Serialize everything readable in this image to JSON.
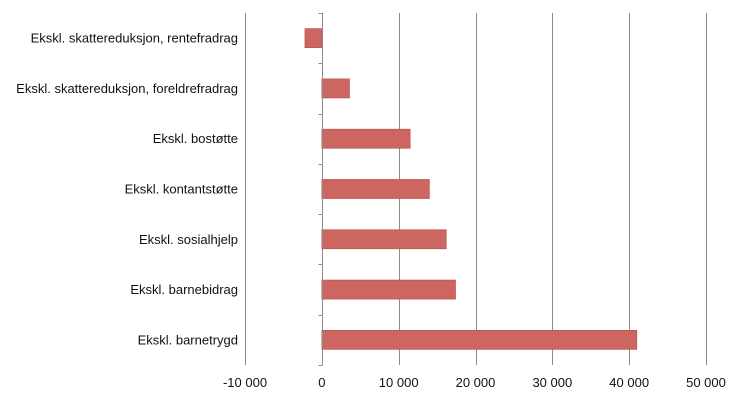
{
  "chart_data": {
    "type": "bar",
    "orientation": "horizontal",
    "categories": [
      "Ekskl. skattereduksjon, rentefradrag",
      "Ekskl. skattereduksjon, foreldrefradrag",
      "Ekskl. bostøtte",
      "Ekskl. kontantstøtte",
      "Ekskl. sosialhjelp",
      "Ekskl. barnebidrag",
      "Ekskl. barnetrygd"
    ],
    "values": [
      -2200,
      3600,
      11500,
      14000,
      16200,
      17400,
      41000
    ],
    "xlim": [
      -10000,
      50000
    ],
    "xticks": [
      -10000,
      0,
      10000,
      20000,
      30000,
      40000,
      50000
    ],
    "xtick_labels": [
      "-10 000",
      "0",
      "10 000",
      "20 000",
      "30 000",
      "40 000",
      "50 000"
    ],
    "title": "",
    "xlabel": "",
    "ylabel": "",
    "grid": "vertical",
    "bar_color": "#cd6661",
    "bar_edge_color": "#b34f4a",
    "grid_color": "#8c8c8c"
  }
}
